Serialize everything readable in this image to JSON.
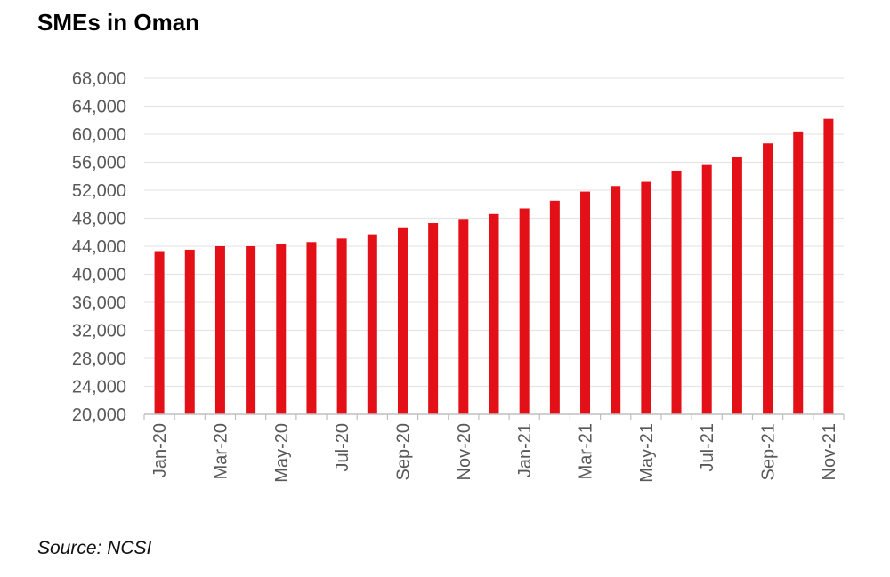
{
  "title": "SMEs in Oman",
  "source": "Source: NCSI",
  "colors": {
    "bar": "#e31018",
    "grid": "#e6e6e6",
    "axis": "#bfbfbf",
    "tick_text": "#595959"
  },
  "chart_data": {
    "type": "bar",
    "title": "SMEs in Oman",
    "xlabel": "",
    "ylabel": "",
    "ylim": [
      20000,
      68000
    ],
    "yticks": [
      20000,
      24000,
      28000,
      32000,
      36000,
      40000,
      44000,
      48000,
      52000,
      56000,
      60000,
      64000,
      68000
    ],
    "ytick_labels": [
      "20,000",
      "24,000",
      "28,000",
      "32,000",
      "36,000",
      "40,000",
      "44,000",
      "48,000",
      "52,000",
      "56,000",
      "60,000",
      "64,000",
      "68,000"
    ],
    "categories": [
      "Jan-20",
      "Feb-20",
      "Mar-20",
      "Apr-20",
      "May-20",
      "Jun-20",
      "Jul-20",
      "Aug-20",
      "Sep-20",
      "Oct-20",
      "Nov-20",
      "Dec-20",
      "Jan-21",
      "Feb-21",
      "Mar-21",
      "Apr-21",
      "May-21",
      "Jun-21",
      "Jul-21",
      "Aug-21",
      "Sep-21",
      "Oct-21",
      "Nov-21"
    ],
    "xtick_labels": [
      "Jan-20",
      "",
      "Mar-20",
      "",
      "May-20",
      "",
      "Jul-20",
      "",
      "Sep-20",
      "",
      "Nov-20",
      "",
      "Jan-21",
      "",
      "Mar-21",
      "",
      "May-21",
      "",
      "Jul-21",
      "",
      "Sep-21",
      "",
      "Nov-21"
    ],
    "values": [
      43300,
      43500,
      44000,
      44000,
      44300,
      44600,
      45100,
      45700,
      46700,
      47300,
      47900,
      48600,
      49400,
      50500,
      51800,
      52600,
      53200,
      54800,
      55600,
      56700,
      58700,
      60400,
      62200
    ],
    "grid": true,
    "legend": "none"
  }
}
